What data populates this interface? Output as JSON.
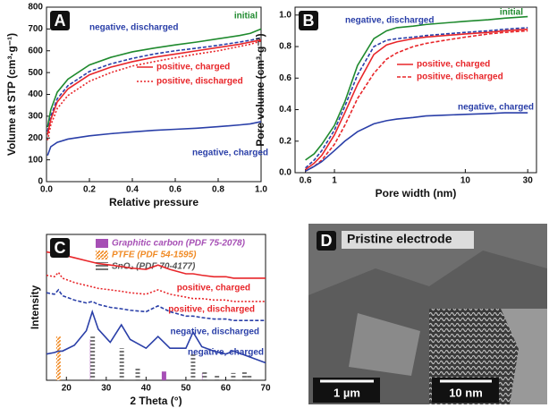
{
  "chart_data": [
    {
      "type": "line",
      "panel_label": "A",
      "xlabel": "Relative pressure",
      "ylabel": "Volume at STP (cm³·g⁻¹)",
      "x": [
        0.005,
        0.02,
        0.05,
        0.1,
        0.2,
        0.3,
        0.4,
        0.5,
        0.6,
        0.7,
        0.8,
        0.9,
        0.95,
        1.0
      ],
      "xlim": [
        0,
        1.0
      ],
      "xticks": [
        {
          "value": 0,
          "label": "0.0"
        },
        {
          "value": 0.2,
          "label": "0.2"
        },
        {
          "value": 0.4,
          "label": "0.4"
        },
        {
          "value": 0.6,
          "label": "0.6"
        },
        {
          "value": 0.8,
          "label": "0.8"
        },
        {
          "value": 1,
          "label": "1.0"
        }
      ],
      "ylim": [
        0,
        800
      ],
      "yticks": [
        0,
        100,
        200,
        300,
        400,
        500,
        600,
        700,
        800
      ],
      "series": [
        {
          "name": "initial",
          "color": "#1f8a2e",
          "dash": null,
          "values": [
            250,
            330,
            410,
            470,
            535,
            570,
            595,
            612,
            627,
            640,
            655,
            670,
            680,
            700
          ]
        },
        {
          "name": "negative, discharged",
          "color": "#2a3fa8",
          "dash": "4,2",
          "values": [
            230,
            300,
            380,
            440,
            505,
            540,
            565,
            585,
            600,
            612,
            625,
            640,
            648,
            660
          ]
        },
        {
          "name": "positive, charged",
          "color": "#e8262a",
          "dash": null,
          "values": [
            215,
            285,
            365,
            425,
            490,
            525,
            550,
            570,
            585,
            600,
            615,
            630,
            640,
            650
          ]
        },
        {
          "name": "positive, discharged",
          "color": "#e8262a",
          "dash": "2,2",
          "values": [
            190,
            260,
            335,
            395,
            460,
            500,
            530,
            550,
            568,
            585,
            600,
            620,
            630,
            645
          ]
        },
        {
          "name": "negative, charged",
          "color": "#2a3fa8",
          "dash": null,
          "values": [
            120,
            160,
            180,
            195,
            210,
            220,
            228,
            235,
            240,
            245,
            252,
            260,
            265,
            275
          ]
        }
      ]
    },
    {
      "type": "line",
      "panel_label": "B",
      "xlabel": "Pore width (nm)",
      "ylabel": "Pore volume (cm³·g⁻¹)",
      "log_x": true,
      "x": [
        0.6,
        0.7,
        0.8,
        1,
        1.2,
        1.5,
        2,
        2.5,
        3,
        4,
        5,
        7,
        10,
        15,
        20,
        30
      ],
      "xlim": [
        0.5,
        35
      ],
      "xticks": [
        0.6,
        1,
        10,
        30
      ],
      "ylim": [
        0,
        1.05
      ],
      "yticks": [
        {
          "value": 0,
          "label": "0.0"
        },
        {
          "value": 0.2,
          "label": "0.2"
        },
        {
          "value": 0.4,
          "label": "0.4"
        },
        {
          "value": 0.6,
          "label": "0.6"
        },
        {
          "value": 0.8,
          "label": "0.8"
        },
        {
          "value": 1,
          "label": "1.0"
        }
      ],
      "series": [
        {
          "name": "initial",
          "color": "#1f8a2e",
          "dash": null,
          "values": [
            0.08,
            0.12,
            0.18,
            0.3,
            0.45,
            0.68,
            0.85,
            0.9,
            0.92,
            0.93,
            0.94,
            0.95,
            0.96,
            0.97,
            0.98,
            0.99
          ]
        },
        {
          "name": "negative, discharged",
          "color": "#2a3fa8",
          "dash": "4,2",
          "values": [
            0.03,
            0.08,
            0.14,
            0.27,
            0.42,
            0.62,
            0.8,
            0.84,
            0.85,
            0.86,
            0.87,
            0.88,
            0.89,
            0.9,
            0.91,
            0.92
          ]
        },
        {
          "name": "positive, charged",
          "color": "#e8262a",
          "dash": null,
          "values": [
            0.02,
            0.06,
            0.11,
            0.24,
            0.38,
            0.56,
            0.75,
            0.81,
            0.83,
            0.85,
            0.86,
            0.87,
            0.88,
            0.89,
            0.9,
            0.91
          ]
        },
        {
          "name": "positive, discharged",
          "color": "#e8262a",
          "dash": "4,2",
          "values": [
            0.01,
            0.04,
            0.08,
            0.18,
            0.3,
            0.47,
            0.63,
            0.72,
            0.76,
            0.8,
            0.82,
            0.84,
            0.86,
            0.88,
            0.89,
            0.9
          ]
        },
        {
          "name": "negative, charged",
          "color": "#2a3fa8",
          "dash": null,
          "values": [
            0.01,
            0.04,
            0.07,
            0.14,
            0.2,
            0.26,
            0.31,
            0.33,
            0.34,
            0.35,
            0.36,
            0.365,
            0.37,
            0.375,
            0.38,
            0.38
          ]
        }
      ]
    },
    {
      "type": "line",
      "panel_label": "C",
      "xlabel": "2 Theta (°)",
      "ylabel": "Intensity",
      "x": [
        15,
        17,
        18,
        19,
        22,
        25,
        26.5,
        28,
        31,
        33.8,
        36,
        40,
        43,
        46,
        50,
        51.8,
        54,
        57,
        60,
        62,
        65,
        70
      ],
      "xlim": [
        15,
        70
      ],
      "xticks": [
        20,
        30,
        40,
        50,
        60,
        70
      ],
      "ylim": [
        0,
        100
      ],
      "series": [
        {
          "name": "positive, charged",
          "color": "#e8262a",
          "dash": null,
          "values": [
            88,
            87,
            89,
            86,
            84,
            82,
            81,
            80,
            79,
            78,
            77,
            76,
            79,
            76,
            73,
            73,
            72,
            71,
            71,
            70,
            70,
            70
          ]
        },
        {
          "name": "positive, discharged",
          "color": "#e8262a",
          "dash": "2,2",
          "values": [
            72,
            71,
            74,
            70,
            67,
            65,
            64,
            63,
            62,
            61,
            60,
            59,
            62,
            59,
            57,
            56,
            56,
            55,
            55,
            54,
            54,
            54
          ]
        },
        {
          "name": "negative, discharged",
          "color": "#2a3fa8",
          "dash": "4,2",
          "values": [
            60,
            59,
            62,
            58,
            55,
            53,
            54,
            52,
            50,
            49,
            48,
            47,
            51,
            47,
            44,
            44,
            43,
            42,
            42,
            41,
            41,
            41
          ]
        },
        {
          "name": "negative, charged",
          "color": "#2a3fa8",
          "dash": null,
          "values": [
            18,
            19,
            20,
            20,
            24,
            34,
            47,
            35,
            26,
            38,
            28,
            22,
            30,
            22,
            22,
            33,
            23,
            20,
            18,
            20,
            17,
            12
          ]
        }
      ],
      "reference_patterns": [
        {
          "name": "Graphitic carbon (PDF 75-2078)",
          "color": "#a64fb5",
          "hatch": null,
          "x": [
            26.5,
            44.5,
            54.6
          ],
          "values": [
            28,
            6,
            5
          ]
        },
        {
          "name": "PTFE (PDF 54-1595)",
          "color": "#f08a24",
          "hatch": "diagonal",
          "x": [
            18
          ],
          "values": [
            30
          ]
        },
        {
          "name": "SnO₂ (PDF 70-4177)",
          "color": "#555555",
          "hatch": "horizontal",
          "x": [
            26.6,
            33.9,
            37.9,
            51.8,
            54.7,
            57.8,
            61.9,
            64.7,
            65.9
          ],
          "values": [
            30,
            22,
            8,
            18,
            6,
            4,
            5,
            6,
            4
          ]
        }
      ]
    }
  ],
  "image_panel": {
    "label": "D",
    "title": "Pristine electrode",
    "scale_bar_main": "1 µm",
    "scale_bar_inset": "10 nm"
  }
}
